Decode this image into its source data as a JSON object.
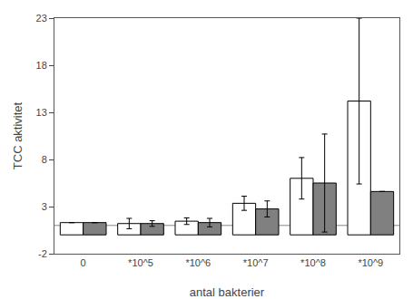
{
  "chart_data": {
    "type": "bar",
    "xlabel": "antal bakterier",
    "ylabel": "TCC aktivitet",
    "categories": [
      "0",
      "*10^5",
      "*10^6",
      "*10^7",
      "*10^8",
      "*10^9"
    ],
    "series": [
      {
        "color": "#ffffff",
        "values": [
          1.3,
          1.2,
          1.45,
          3.35,
          6.0,
          14.2
        ],
        "errors": [
          0.0,
          0.55,
          0.35,
          0.75,
          2.2,
          8.8
        ]
      },
      {
        "color": "#808080",
        "values": [
          1.3,
          1.2,
          1.3,
          2.75,
          5.5,
          4.6
        ],
        "errors": [
          0.0,
          0.3,
          0.45,
          0.85,
          5.2,
          0.0
        ]
      }
    ],
    "baseline": 1.0,
    "ylim": [
      -2,
      23
    ],
    "yticks": [
      -2,
      3,
      8,
      13,
      18,
      23
    ],
    "grid": false
  }
}
